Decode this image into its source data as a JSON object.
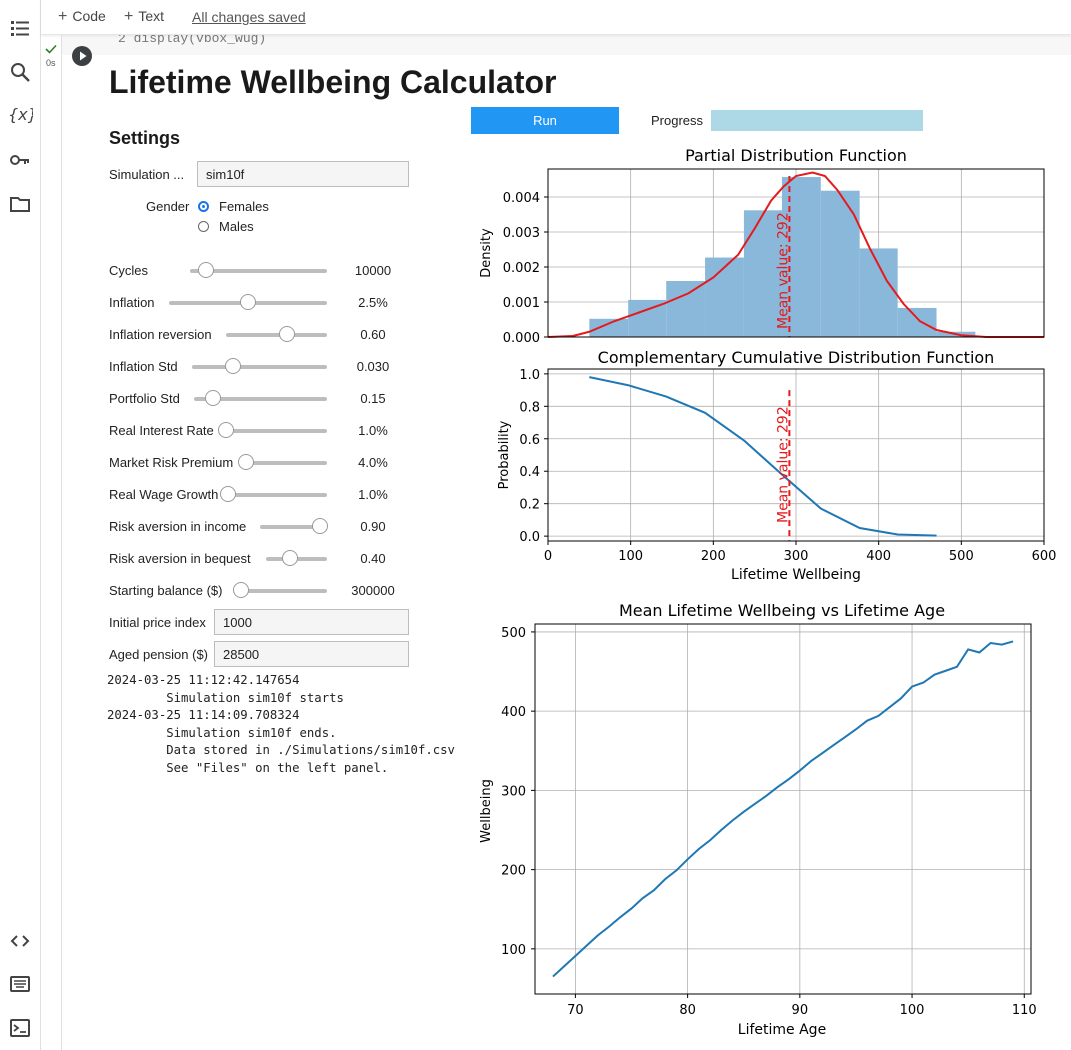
{
  "toolbar": {
    "code_label": "Code",
    "text_label": "Text",
    "saved_label": "All changes saved"
  },
  "sidebar_icons": [
    "toc-icon",
    "search-icon",
    "variables-icon",
    "secrets-key-icon",
    "folder-icon",
    "code-snippets-icon",
    "command-palette-icon",
    "terminal-icon"
  ],
  "cell": {
    "exec_time": "0s",
    "code_text": "2   display(vbox_wug)"
  },
  "app": {
    "title": "Lifetime Wellbeing Calculator",
    "settings_heading": "Settings",
    "simulation": {
      "label": "Simulation ...",
      "value": "sim10f"
    },
    "gender": {
      "label": "Gender",
      "options": [
        "Females",
        "Males"
      ],
      "selected": "Females"
    },
    "sliders": [
      {
        "label": "Cycles",
        "value": "10000",
        "level": 0.12
      },
      {
        "label": "Inflation",
        "value": "2.5%",
        "level": 0.5
      },
      {
        "label": "Inflation reversion",
        "value": "0.60",
        "level": 0.6
      },
      {
        "label": "Inflation Std",
        "value": "0.030",
        "level": 0.3
      },
      {
        "label": "Portfolio Std",
        "value": "0.15",
        "level": 0.14
      },
      {
        "label": "Real Interest Rate",
        "value": "1.0%",
        "level": 0.02
      },
      {
        "label": "Market Risk Premium",
        "value": "4.0%",
        "level": 0.02
      },
      {
        "label": "Real Wage Growth",
        "value": "1.0%",
        "level": 0.02
      },
      {
        "label": "Risk aversion in income",
        "value": "0.90",
        "level": 0.9
      },
      {
        "label": "Risk aversion in bequest",
        "value": "0.40",
        "level": 0.4
      },
      {
        "label": "Starting balance ($)",
        "value": "300000",
        "level": 0.05
      }
    ],
    "initial_price_index": {
      "label": "Initial price index",
      "value": "1000"
    },
    "aged_pension": {
      "label": "Aged pension ($)",
      "value": "28500"
    },
    "run_label": "Run",
    "progress_label": "Progress",
    "progress": 1.0,
    "log": "2024-03-25 11:12:42.147654\n        Simulation sim10f starts\n2024-03-25 11:14:09.708324\n        Simulation sim10f ends.\n        Data stored in ./Simulations/sim10f.csv\n        See \"Files\" on the left panel."
  },
  "colors": {
    "hist": "#8ab8da",
    "kde": "#e41a1c",
    "line": "#1f77b4",
    "mean": "#e41a1c",
    "run": "#2196f3",
    "progress": "#add8e6"
  },
  "chart_data": [
    {
      "type": "bar",
      "title": "Partial Distribution Function",
      "ylabel": "Density",
      "xlim": [
        0,
        600
      ],
      "ylim": [
        0,
        0.0048
      ],
      "yticks": [
        "0.000",
        "0.001",
        "0.002",
        "0.003",
        "0.004"
      ],
      "ytick_values": [
        0,
        0.001,
        0.002,
        0.003,
        0.004
      ],
      "bin_edges": [
        50,
        97,
        143,
        190,
        237,
        283,
        330,
        377,
        423,
        470
      ],
      "density": [
        0.00052,
        0.00106,
        0.0016,
        0.00227,
        0.00362,
        0.00457,
        0.00418,
        0.00253,
        0.00083,
        0.00015
      ],
      "kde": {
        "x": [
          0,
          30,
          50,
          80,
          110,
          140,
          170,
          200,
          230,
          250,
          270,
          285,
          300,
          320,
          335,
          350,
          370,
          390,
          410,
          430,
          450,
          470,
          500,
          530,
          550,
          580,
          600
        ],
        "y": [
          0,
          3e-05,
          0.00015,
          0.00045,
          0.0007,
          0.00095,
          0.00125,
          0.0017,
          0.00235,
          0.0031,
          0.0039,
          0.0043,
          0.0046,
          0.0047,
          0.0046,
          0.0042,
          0.0035,
          0.0025,
          0.0016,
          0.00095,
          0.00045,
          0.0002,
          5e-05,
          0,
          0,
          0,
          0
        ]
      },
      "mean": 292,
      "mean_label": "Mean value:  292"
    },
    {
      "type": "line",
      "title": "Complementary Cumulative Distribution Function",
      "xlabel": "Lifetime Wellbeing",
      "ylabel": "Probability",
      "xlim": [
        0,
        600
      ],
      "ylim": [
        -0.03,
        1.03
      ],
      "xticks": [
        0,
        100,
        200,
        300,
        400,
        500,
        600
      ],
      "yticks": [
        "0.0",
        "0.2",
        "0.4",
        "0.6",
        "0.8",
        "1.0"
      ],
      "ytick_values": [
        0,
        0.2,
        0.4,
        0.6,
        0.8,
        1.0
      ],
      "x": [
        50,
        97,
        143,
        190,
        237,
        283,
        330,
        377,
        423,
        470
      ],
      "y": [
        0.98,
        0.93,
        0.86,
        0.76,
        0.59,
        0.38,
        0.17,
        0.05,
        0.01,
        0.003
      ],
      "mean": 292,
      "mean_label": "Mean value:  292"
    },
    {
      "type": "line",
      "title": "Mean Lifetime Wellbeing vs Lifetime Age",
      "xlabel": "Lifetime Age",
      "ylabel": "Wellbeing",
      "xlim": [
        66.4,
        110.6
      ],
      "ylim": [
        43,
        510
      ],
      "xticks": [
        70,
        80,
        90,
        100,
        110
      ],
      "yticks": [
        100,
        200,
        300,
        400,
        500
      ],
      "x": [
        68,
        69,
        70,
        71,
        72,
        73,
        74,
        75,
        76,
        77,
        78,
        79,
        80,
        81,
        82,
        83,
        84,
        85,
        86,
        87,
        88,
        89,
        90,
        91,
        92,
        93,
        94,
        95,
        96,
        97,
        98,
        99,
        100,
        101,
        102,
        103,
        104,
        105,
        106,
        107,
        108,
        109
      ],
      "y": [
        65,
        78,
        91,
        104,
        117,
        128,
        140,
        151,
        164,
        174,
        188,
        199,
        213,
        226,
        237,
        250,
        262,
        273,
        283,
        293,
        304,
        314,
        325,
        337,
        347,
        357,
        367,
        377,
        388,
        394,
        405,
        416,
        431,
        436,
        446,
        451,
        456,
        478,
        474,
        486,
        484,
        488
      ]
    }
  ]
}
